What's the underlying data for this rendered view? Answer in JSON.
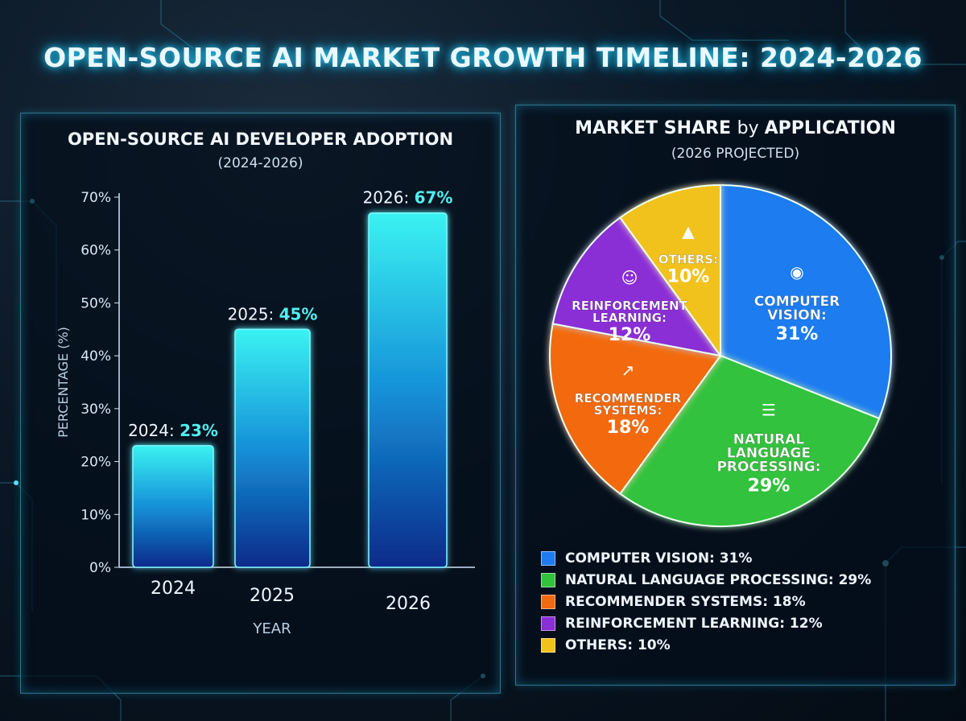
{
  "title": "OPEN-SOURCE AI MARKET GROWTH TIMELINE: 2024-2026",
  "chart_data": [
    {
      "type": "bar",
      "title": "OPEN-SOURCE AI DEVELOPER ADOPTION",
      "subtitle": "(2024-2026)",
      "xlabel": "YEAR",
      "ylabel": "PERCENTAGE (%)",
      "categories": [
        "2024",
        "2025",
        "2026"
      ],
      "values": [
        23,
        45,
        67
      ],
      "data_labels": [
        {
          "year": "2024: ",
          "value": "23%"
        },
        {
          "year": "2025: ",
          "value": "45%"
        },
        {
          "year": "2026: ",
          "value": "67%"
        }
      ],
      "ylim": [
        0,
        70
      ],
      "yticks": [
        "0%",
        "10%",
        "20%",
        "30%",
        "40%",
        "50%",
        "60%",
        "70%"
      ],
      "bar_color": "#2de6f0"
    },
    {
      "type": "pie",
      "title_a": "MARKET SHARE ",
      "title_b": "by ",
      "title_c": "APPLICATION",
      "subtitle": "(2026 PROJECTED)",
      "slices": [
        {
          "label": [
            "COMPUTER",
            "VISION:"
          ],
          "value": 31,
          "pct": "31%",
          "color": "#1f7cf0",
          "icon": "eye-icon",
          "legend": "COMPUTER VISION: 31%"
        },
        {
          "label": [
            "NATURAL",
            "LANGUAGE",
            "PROCESSING:"
          ],
          "value": 29,
          "pct": "29%",
          "color": "#33c23c",
          "icon": "document-icon",
          "legend": "NATURAL LANGUAGE PROCESSING: 29%"
        },
        {
          "label": [
            "RECOMMENDER",
            "SYSTEMS:"
          ],
          "value": 18,
          "pct": "18%",
          "color": "#f26a10",
          "icon": "trend-up-icon",
          "legend": "RECOMMENDER SYSTEMS: 18%"
        },
        {
          "label": [
            "REINFORCEMENT",
            "LEARNING:"
          ],
          "value": 12,
          "pct": "12%",
          "color": "#8a2fd6",
          "icon": "brain-head-icon",
          "legend": "REINFORCEMENT LEARNING: 12%"
        },
        {
          "label": [
            "OTHERS:"
          ],
          "value": 10,
          "pct": "10%",
          "color": "#f2c21a",
          "icon": "person-icon",
          "legend": "OTHERS: 10%"
        }
      ],
      "legend_position": "bottom-left"
    }
  ]
}
